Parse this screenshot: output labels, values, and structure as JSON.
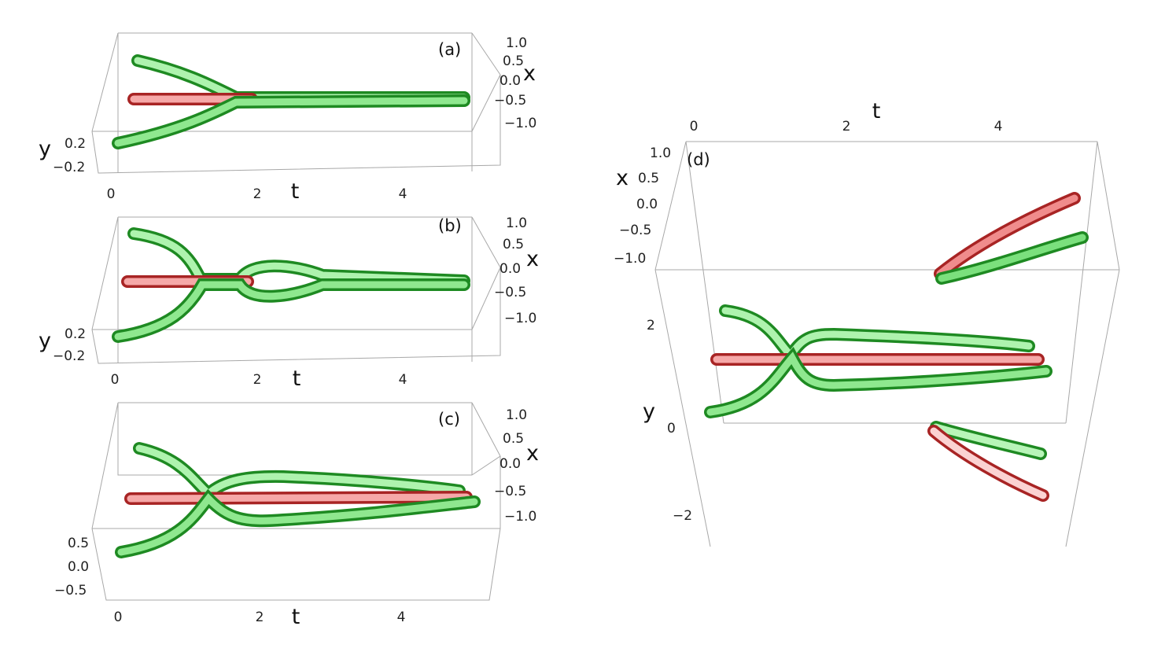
{
  "panels": [
    {
      "label": "(a)",
      "t_label": "t",
      "x_label": "x",
      "y_label": "y",
      "t_ticks": [
        "0",
        "2",
        "4"
      ],
      "x_ticks": [
        "1.0",
        "0.5",
        "0.0",
        "−0.5",
        "−1.0"
      ],
      "y_ticks": [
        "0.2",
        "−0.2"
      ]
    },
    {
      "label": "(b)",
      "t_label": "t",
      "x_label": "x",
      "y_label": "y",
      "t_ticks": [
        "0",
        "2",
        "4"
      ],
      "x_ticks": [
        "1.0",
        "0.5",
        "0.0",
        "−0.5",
        "−1.0"
      ],
      "y_ticks": [
        "0.2",
        "−0.2"
      ]
    },
    {
      "label": "(c)",
      "t_label": "t",
      "x_label": "x",
      "t_ticks": [
        "0",
        "2",
        "4"
      ],
      "x_ticks": [
        "1.0",
        "0.5",
        "0.0",
        "−0.5",
        "−1.0"
      ],
      "y_ticks": [
        "0.5",
        "0.0",
        "−0.5"
      ]
    },
    {
      "label": "(d)",
      "t_label": "t",
      "x_label": "x",
      "y_label": "y",
      "t_ticks": [
        "0",
        "2",
        "4"
      ],
      "x_ticks": [
        "1.0",
        "0.5",
        "0.0",
        "−0.5",
        "−1.0"
      ],
      "y_ticks": [
        "2",
        "0",
        "−2"
      ]
    }
  ],
  "colors": {
    "red_tube": "#e05858",
    "green_tube": "#46c84a",
    "box_lines": "#a8a8a8"
  }
}
